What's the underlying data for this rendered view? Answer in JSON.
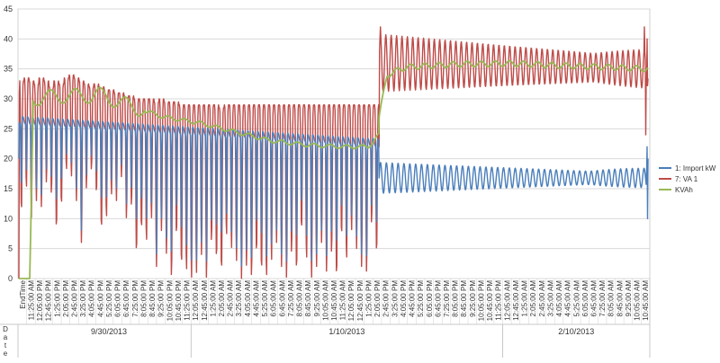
{
  "chart_data": {
    "type": "line",
    "ylim": [
      0,
      45
    ],
    "y_ticks": [
      0,
      5,
      10,
      15,
      20,
      25,
      30,
      35,
      40,
      45
    ],
    "grid": "horizontal",
    "legend_position": "right",
    "x_axis_title": "EndTime",
    "date_axis_title": "Date",
    "date_groups": [
      {
        "label": "9/30/2013",
        "ticks": [
          "11:25:00 AM",
          "12:05:00 PM",
          "12:45:00 PM",
          "1:25:00 PM",
          "2:05:00 PM",
          "2:45:00 PM",
          "3:25:00 PM",
          "4:05:00 PM",
          "4:45:00 PM",
          "5:25:00 PM",
          "6:05:00 PM",
          "6:45:00 PM",
          "7:25:00 PM",
          "8:05:00 PM",
          "8:45:00 PM",
          "9:25:00 PM",
          "10:05:00 PM",
          "10:45:00 PM",
          "11:25:00 PM"
        ]
      },
      {
        "label": "1/10/2013",
        "ticks": [
          "12:05:00 AM",
          "12:45:00 AM",
          "1:25:00 AM",
          "2:05:00 AM",
          "2:45:00 AM",
          "3:25:00 AM",
          "4:05:00 AM",
          "4:45:00 AM",
          "5:25:00 AM",
          "6:05:00 AM",
          "6:45:00 AM",
          "7:25:00 AM",
          "8:05:00 AM",
          "8:45:00 AM",
          "9:25:00 AM",
          "10:05:00 AM",
          "10:45:00 AM",
          "11:25:00 AM",
          "12:05:00 PM",
          "12:45:00 PM",
          "1:25:00 PM",
          "2:05:00 PM",
          "2:45:00 PM",
          "3:25:00 PM",
          "4:05:00 PM",
          "4:45:00 PM",
          "5:25:00 PM",
          "6:05:00 PM",
          "6:45:00 PM",
          "7:25:00 PM",
          "8:05:00 PM",
          "8:45:00 PM",
          "9:25:00 PM",
          "10:05:00 PM",
          "10:45:00 PM",
          "11:25:00 PM"
        ]
      },
      {
        "label": "2/10/2013",
        "ticks": [
          "12:05:00 AM",
          "12:45:00 AM",
          "1:25:00 AM",
          "2:05:00 AM",
          "2:45:00 AM",
          "3:25:00 AM",
          "4:05:00 AM",
          "4:45:00 AM",
          "5:25:00 AM",
          "6:05:00 AM",
          "6:45:00 AM",
          "7:25:00 AM",
          "8:05:00 AM",
          "8:45:00 AM",
          "9:25:00 AM",
          "10:05:00 AM",
          "10:45:00 AM"
        ]
      }
    ],
    "series": [
      {
        "name": "1: Import kW",
        "color": "#4a7ebb",
        "segments": [
          {
            "share": 0.572,
            "center": [
              25.5,
              22.0
            ],
            "amp_up": [
              1.0,
              0.7
            ],
            "lows": [
              13,
              17,
              12,
              15,
              14,
              18,
              16,
              10,
              14,
              20,
              19,
              15,
              8,
              17,
              20,
              16,
              10,
              12,
              16,
              15,
              19,
              12,
              14,
              6,
              10,
              8,
              12,
              4,
              10,
              6,
              2,
              9,
              4,
              3,
              2,
              3,
              6,
              2,
              8,
              5,
              3,
              9,
              7,
              5,
              2,
              4,
              1,
              6,
              3,
              1,
              5,
              8,
              4,
              2,
              6,
              3,
              10,
              5,
              2,
              4,
              8,
              3,
              6,
              2,
              9,
              5,
              10,
              7,
              4,
              3,
              11,
              6
            ]
          },
          {
            "share": 0.428,
            "center": [
              16.8,
              16.8
            ],
            "amp": [
              2.6,
              0.7
            ],
            "cycles": 46
          },
          {
            "share": 0.0,
            "end_values": [
              18,
              22,
              10,
              20
            ]
          }
        ]
      },
      {
        "name": "7: VA 1",
        "color": "#be4b48",
        "segments": [
          {
            "share": 0.572,
            "highs": [
              33,
              33.5,
              33,
              32.5,
              33.5,
              33,
              32,
              33,
              32.5,
              33.5,
              34,
              33.5,
              33,
              32.5,
              32,
              32.5,
              32,
              31.5,
              31.5,
              31,
              31,
              30.5,
              30.5,
              30,
              30,
              30,
              30,
              29.5,
              30,
              29.5,
              29.5,
              29.5,
              29,
              29,
              29,
              29,
              29,
              29,
              29,
              29,
              28.5,
              29,
              29,
              29,
              29,
              29,
              29,
              29,
              29,
              29,
              29,
              29,
              29,
              29,
              29,
              29,
              29,
              29,
              29,
              29,
              29,
              29,
              29,
              29,
              29,
              29,
              29,
              29,
              29,
              29,
              29,
              29
            ]
          },
          {
            "share": 0.428,
            "center": [
              36.0,
              35.0
            ],
            "amp": [
              4.8,
              1.8
            ],
            "cycles": 50
          },
          {
            "share": 0.0,
            "end_values": [
              42,
              24,
              40
            ]
          }
        ]
      },
      {
        "name": "KVAh",
        "color": "#98b954",
        "segments": [
          {
            "share": 0.572,
            "points": [
              [
                0,
                0
              ],
              [
                0.03,
                0
              ],
              [
                0.04,
                30
              ],
              [
                0.12,
                30.5
              ],
              [
                0.2,
                30.5
              ],
              [
                0.22,
                30.8
              ],
              [
                0.3,
                29
              ],
              [
                0.4,
                27
              ],
              [
                0.5,
                26
              ],
              [
                0.6,
                24.5
              ],
              [
                0.7,
                23
              ],
              [
                0.8,
                22.3
              ],
              [
                0.9,
                22
              ],
              [
                0.97,
                22
              ],
              [
                1.0,
                24
              ]
            ]
          },
          {
            "share": 0.428,
            "points": [
              [
                0,
                27
              ],
              [
                0.03,
                34
              ],
              [
                0.1,
                35.3
              ],
              [
                0.3,
                35.8
              ],
              [
                0.5,
                35.9
              ],
              [
                0.7,
                35.5
              ],
              [
                0.85,
                35.3
              ],
              [
                1.0,
                35
              ]
            ]
          }
        ]
      }
    ]
  }
}
